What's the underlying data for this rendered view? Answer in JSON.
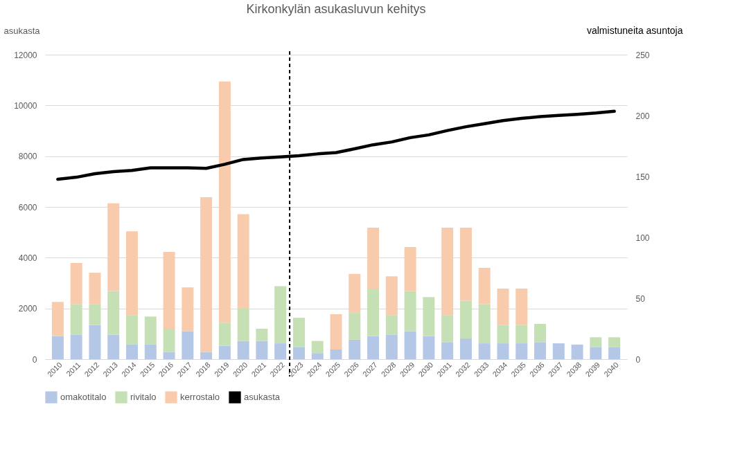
{
  "chart_data": {
    "type": "bar",
    "title": "Kirkonkylän asukasluvun kehitys",
    "ylabel": "asukasta",
    "y2label": "valmistuneita asuntoja",
    "x": [
      2010,
      2011,
      2012,
      2013,
      2014,
      2015,
      2016,
      2017,
      2018,
      2019,
      2020,
      2021,
      2022,
      2023,
      2024,
      2025,
      2026,
      2027,
      2028,
      2029,
      2030,
      2031,
      2032,
      2033,
      2034,
      2035,
      2036,
      2037,
      2038,
      2039,
      2040
    ],
    "xlim": [
      2009.5,
      2040.5
    ],
    "xticks": [
      2010,
      2011,
      2012,
      2013,
      2014,
      2015,
      2016,
      2017,
      2018,
      2019,
      2020,
      2021,
      2022,
      2023,
      2024,
      2025,
      2026,
      2027,
      2028,
      2029,
      2030,
      2031,
      2032,
      2033,
      2034,
      2035,
      2036,
      2037,
      2038,
      2039,
      2040
    ],
    "ylim": [
      0,
      12000
    ],
    "yticks": [
      0,
      2000,
      4000,
      6000,
      8000,
      10000,
      12000
    ],
    "y2lim": [
      0,
      250
    ],
    "y2ticks": [
      0,
      50,
      100,
      150,
      200,
      250
    ],
    "stacked": true,
    "grid": "y",
    "legend": "bottom",
    "series": [
      {
        "name": "omakotitalo",
        "color": "#b4c7e7",
        "axis": "y2",
        "values": [
          19,
          20,
          28,
          20,
          12,
          12,
          6,
          23,
          6,
          11,
          15,
          15,
          13,
          10,
          5,
          8,
          16,
          19,
          20,
          23,
          19,
          14,
          17,
          13,
          13,
          13,
          14,
          13,
          12,
          10,
          10
        ]
      },
      {
        "name": "rivitalo",
        "color": "#c5e0b4",
        "axis": "y2",
        "values": [
          0,
          25,
          17,
          36,
          24,
          23,
          19,
          0,
          0,
          19,
          27,
          10,
          47,
          24,
          10,
          0,
          22,
          39,
          16,
          33,
          32,
          22,
          31,
          32,
          15,
          15,
          15,
          0,
          0,
          8,
          8
        ]
      },
      {
        "name": "kerrostalo",
        "color": "#f8cbad",
        "axis": "y2",
        "values": [
          28,
          34,
          26,
          72,
          69,
          0,
          63,
          36,
          127,
          198,
          77,
          0,
          0,
          0,
          0,
          29,
          32,
          50,
          32,
          36,
          0,
          72,
          60,
          30,
          30,
          30,
          0,
          0,
          0,
          0,
          0
        ]
      },
      {
        "name": "asukasta",
        "color": "#000000",
        "type": "line",
        "axis": "y",
        "values": [
          7090,
          7170,
          7310,
          7390,
          7440,
          7540,
          7540,
          7540,
          7520,
          7680,
          7870,
          7930,
          7970,
          8020,
          8090,
          8140,
          8290,
          8450,
          8560,
          8730,
          8840,
          9010,
          9160,
          9280,
          9400,
          9490,
          9560,
          9610,
          9650,
          9700,
          9770
        ]
      }
    ],
    "ref_lines": [
      {
        "axis": "x",
        "value": 2022.5,
        "color": "#000000",
        "line_style": "dashed"
      }
    ]
  }
}
